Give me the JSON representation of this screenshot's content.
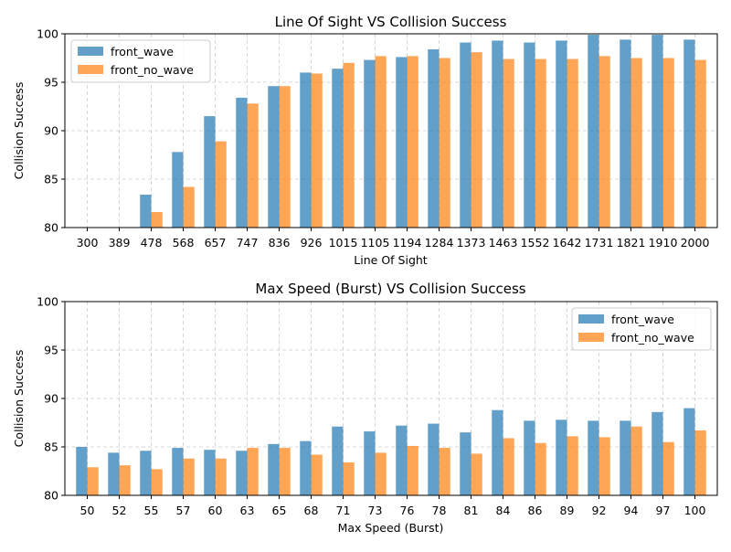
{
  "chart_data": [
    {
      "type": "bar",
      "title": "Line Of Sight VS Collision Success",
      "xlabel": "Line Of Sight",
      "ylabel": "Collision Success",
      "ylim": [
        80,
        100
      ],
      "yticks": [
        "80",
        "85",
        "90",
        "95",
        "100"
      ],
      "grid": true,
      "legend_position": "top-left",
      "categories": [
        "300",
        "389",
        "478",
        "568",
        "657",
        "747",
        "836",
        "926",
        "1015",
        "1105",
        "1194",
        "1284",
        "1373",
        "1463",
        "1552",
        "1642",
        "1731",
        "1821",
        "1910",
        "2000"
      ],
      "series": [
        {
          "name": "front_wave",
          "color": "#1f77b4",
          "values": [
            79.8,
            79.9,
            83.4,
            87.8,
            91.5,
            93.4,
            94.6,
            96.0,
            96.4,
            97.3,
            97.6,
            98.4,
            99.1,
            99.3,
            99.1,
            99.3,
            99.9,
            99.4,
            99.9,
            99.4
          ]
        },
        {
          "name": "front_no_wave",
          "color": "#ff7f0e",
          "values": [
            79.7,
            79.8,
            81.6,
            84.2,
            88.9,
            92.8,
            94.6,
            95.9,
            97.0,
            97.7,
            97.7,
            97.5,
            98.1,
            97.4,
            97.4,
            97.4,
            97.7,
            97.5,
            97.5,
            97.3
          ]
        }
      ]
    },
    {
      "type": "bar",
      "title": "Max Speed (Burst) VS Collision Success",
      "xlabel": "Max Speed (Burst)",
      "ylabel": "Collision Success",
      "ylim": [
        80,
        100
      ],
      "yticks": [
        "80",
        "85",
        "90",
        "95",
        "100"
      ],
      "grid": true,
      "legend_position": "top-right",
      "categories": [
        "50",
        "52",
        "55",
        "57",
        "60",
        "63",
        "65",
        "68",
        "71",
        "73",
        "76",
        "78",
        "81",
        "84",
        "86",
        "89",
        "92",
        "94",
        "97",
        "100"
      ],
      "series": [
        {
          "name": "front_wave",
          "color": "#1f77b4",
          "values": [
            85.0,
            84.4,
            84.6,
            84.9,
            84.7,
            84.6,
            85.3,
            85.6,
            87.1,
            86.6,
            87.2,
            87.4,
            86.5,
            88.8,
            87.7,
            87.8,
            87.7,
            87.7,
            88.6,
            89.0
          ]
        },
        {
          "name": "front_no_wave",
          "color": "#ff7f0e",
          "values": [
            82.9,
            83.1,
            82.7,
            83.8,
            83.8,
            84.9,
            84.9,
            84.2,
            83.4,
            84.4,
            85.1,
            84.9,
            84.3,
            85.9,
            85.4,
            86.1,
            86.0,
            87.1,
            85.5,
            86.7
          ]
        }
      ]
    }
  ]
}
